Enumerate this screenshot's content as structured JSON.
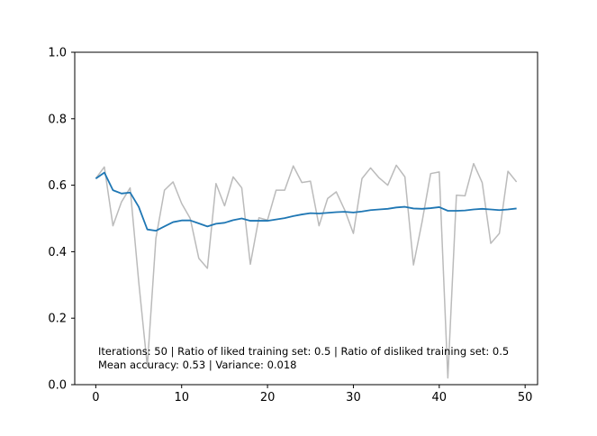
{
  "chart_data": {
    "type": "line",
    "title": "",
    "xlabel": "",
    "ylabel": "",
    "xlim": [
      -2.45,
      51.45
    ],
    "ylim": [
      0.0,
      1.0
    ],
    "grid": false,
    "x_ticks": [
      0,
      10,
      20,
      30,
      40,
      50
    ],
    "x_tick_labels": [
      "0",
      "10",
      "20",
      "30",
      "40",
      "50"
    ],
    "y_ticks": [
      0.0,
      0.2,
      0.4,
      0.6,
      0.8,
      1.0
    ],
    "y_tick_labels": [
      "0.0",
      "0.2",
      "0.4",
      "0.6",
      "0.8",
      "1.0"
    ],
    "series": [
      {
        "color": "#bbbbbb",
        "x": [
          0,
          1,
          2,
          3,
          4,
          5,
          6,
          7,
          8,
          9,
          10,
          11,
          12,
          13,
          14,
          15,
          16,
          17,
          18,
          19,
          20,
          21,
          22,
          23,
          24,
          25,
          26,
          27,
          28,
          29,
          30,
          31,
          32,
          33,
          34,
          35,
          36,
          37,
          38,
          39,
          40,
          41,
          42,
          43,
          44,
          45,
          46,
          47,
          48,
          49
        ],
        "y": [
          0.62,
          0.655,
          0.478,
          0.55,
          0.592,
          0.31,
          0.055,
          0.44,
          0.585,
          0.61,
          0.545,
          0.5,
          0.38,
          0.35,
          0.605,
          0.538,
          0.625,
          0.592,
          0.362,
          0.502,
          0.495,
          0.585,
          0.585,
          0.658,
          0.608,
          0.612,
          0.478,
          0.56,
          0.58,
          0.525,
          0.455,
          0.62,
          0.652,
          0.622,
          0.6,
          0.66,
          0.625,
          0.36,
          0.49,
          0.635,
          0.64,
          0.02,
          0.57,
          0.568,
          0.665,
          0.608,
          0.425,
          0.455,
          0.642,
          0.61
        ]
      },
      {
        "color": "#1f77b4",
        "x": [
          0,
          1,
          2,
          3,
          4,
          5,
          6,
          7,
          8,
          9,
          10,
          11,
          12,
          13,
          14,
          15,
          16,
          17,
          18,
          19,
          20,
          21,
          22,
          23,
          24,
          25,
          26,
          27,
          28,
          29,
          30,
          31,
          32,
          33,
          34,
          35,
          36,
          37,
          38,
          39,
          40,
          41,
          42,
          43,
          44,
          45,
          46,
          47,
          48,
          49
        ],
        "y": [
          0.62,
          0.638,
          0.585,
          0.575,
          0.578,
          0.535,
          0.467,
          0.463,
          0.476,
          0.489,
          0.494,
          0.494,
          0.485,
          0.476,
          0.484,
          0.487,
          0.495,
          0.5,
          0.493,
          0.493,
          0.493,
          0.497,
          0.501,
          0.507,
          0.512,
          0.516,
          0.515,
          0.517,
          0.519,
          0.52,
          0.518,
          0.521,
          0.525,
          0.527,
          0.529,
          0.533,
          0.535,
          0.53,
          0.529,
          0.531,
          0.534,
          0.523,
          0.523,
          0.524,
          0.527,
          0.529,
          0.527,
          0.525,
          0.527,
          0.53
        ]
      }
    ],
    "annotations": [
      "Iterations: 50 | Ratio of liked training set: 0.5 | Ratio of disliked training set: 0.5",
      "Mean accuracy: 0.53 | Variance: 0.018"
    ]
  }
}
